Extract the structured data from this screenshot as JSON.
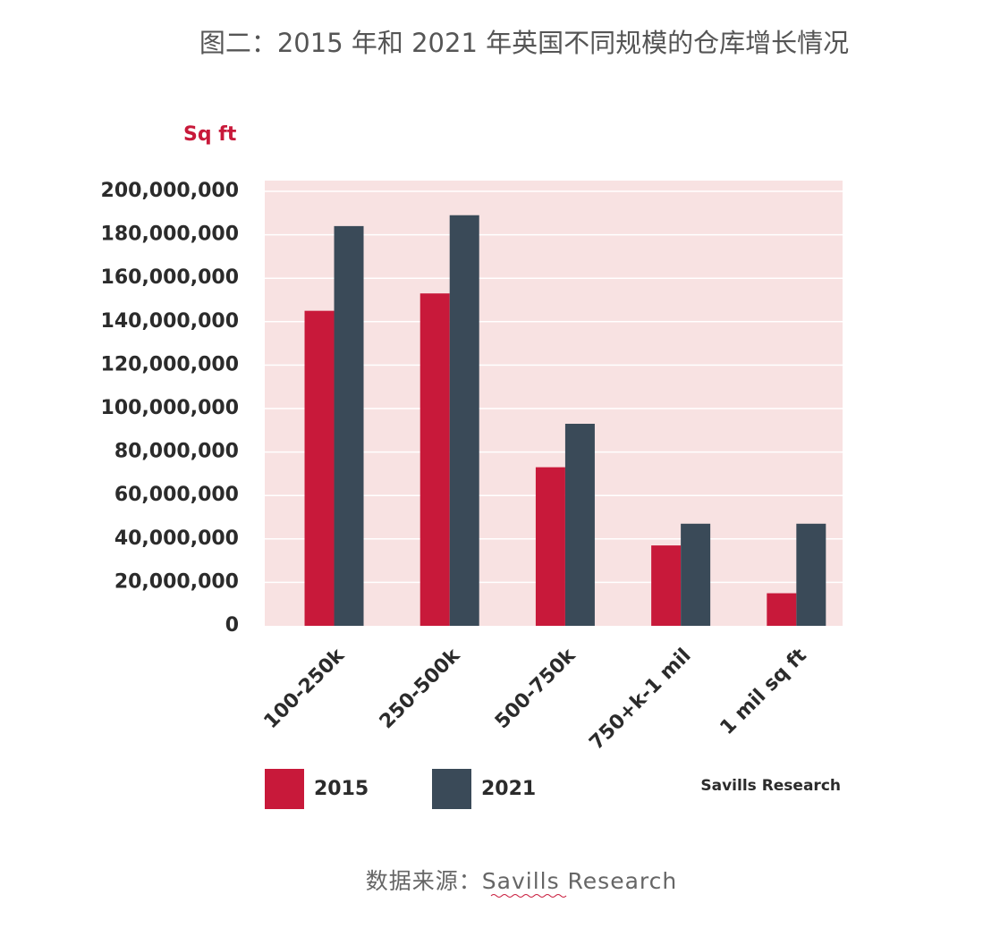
{
  "chart_data": {
    "type": "bar",
    "title": "图二：2015 年和 2021 年英国不同规模的仓库增长情况",
    "y_unit": "Sq ft",
    "categories": [
      "100-250k",
      "250-500k",
      "500-750k",
      "750+k-1 mil",
      "1 mil sq ft"
    ],
    "series": [
      {
        "name": "2015",
        "color": "#c8193a",
        "values": [
          145000000,
          153000000,
          73000000,
          37000000,
          15000000
        ]
      },
      {
        "name": "2021",
        "color": "#3a4a58",
        "values": [
          184000000,
          189000000,
          93000000,
          47000000,
          47000000
        ]
      }
    ],
    "ylim": [
      0,
      200000000
    ],
    "yticks": [
      0,
      {
        "value": 20000000,
        "label": "20,000,000"
      },
      {
        "value": 40000000,
        "label": "40,000,000"
      },
      {
        "value": 60000000,
        "label": "60,000,000"
      },
      {
        "value": 80000000,
        "label": "80,000,000"
      },
      {
        "value": 100000000,
        "label": "100,000,000"
      },
      {
        "value": 120000000,
        "label": "120,000,000"
      },
      {
        "value": 140000000,
        "label": "140,000,000"
      },
      {
        "value": 160000000,
        "label": "160,000,000"
      },
      {
        "value": 180000000,
        "label": "180,000,000"
      },
      {
        "value": 200000000,
        "label": "200,000,000"
      }
    ],
    "grid": true,
    "legend": "bottom",
    "credit": "Savills Research",
    "footer": "数据来源：Savills Research"
  }
}
